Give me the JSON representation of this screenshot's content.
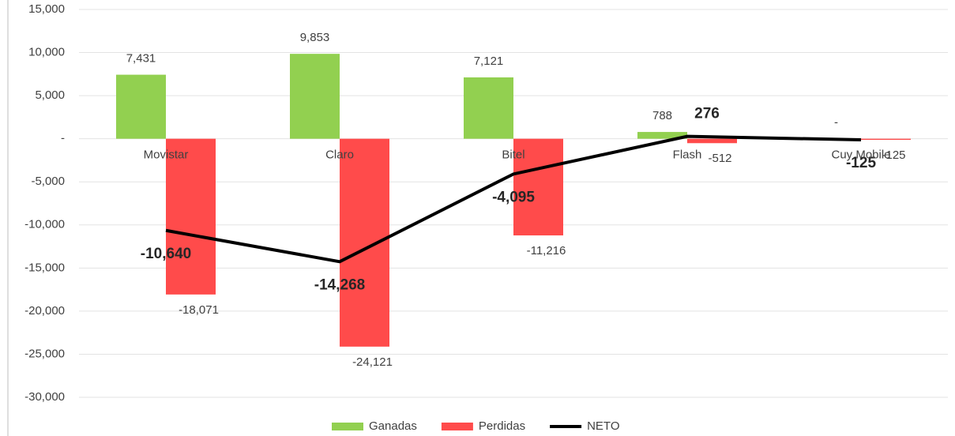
{
  "chart_data": {
    "type": "bar",
    "categories": [
      "Movistar",
      "Claro",
      "Bitel",
      "Flash",
      "Cuy Mobile"
    ],
    "series": [
      {
        "name": "Ganadas",
        "color": "#92d050",
        "values": [
          7431,
          9853,
          7121,
          788,
          0
        ],
        "value_labels": [
          "7,431",
          "9,853",
          "7,121",
          "788",
          "-"
        ]
      },
      {
        "name": "Perdidas",
        "color": "#ff4b4b",
        "values": [
          -18071,
          -24121,
          -11216,
          -512,
          -125
        ],
        "value_labels": [
          "-18,071",
          "-24,121",
          "-11,216",
          "-512",
          "-125"
        ]
      },
      {
        "name": "NETO",
        "color": "#000000",
        "type": "line",
        "values": [
          -10640,
          -14268,
          -4095,
          276,
          -125
        ],
        "value_labels": [
          "-10,640",
          "-14,268",
          "-4,095",
          "276",
          "-125"
        ]
      }
    ],
    "ylim": [
      -30000,
      15000
    ],
    "yticks": [
      {
        "value": -30000,
        "label": "-30,000"
      },
      {
        "value": -25000,
        "label": "-25,000"
      },
      {
        "value": -20000,
        "label": "-20,000"
      },
      {
        "value": -15000,
        "label": "-15,000"
      },
      {
        "value": -10000,
        "label": "-10,000"
      },
      {
        "value": -5000,
        "label": "-5,000"
      },
      {
        "value": 0,
        "label": "-"
      },
      {
        "value": 5000,
        "label": "5,000"
      },
      {
        "value": 10000,
        "label": "10,000"
      },
      {
        "value": 15000,
        "label": "15,000"
      }
    ],
    "grid": true,
    "legend": "bottom"
  }
}
